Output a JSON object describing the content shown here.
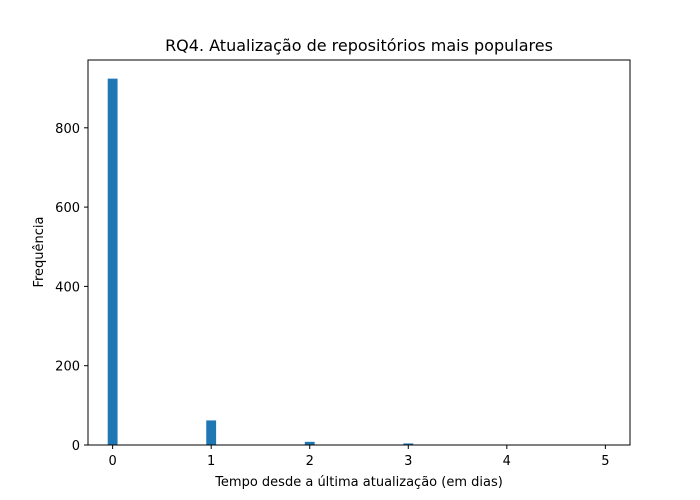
{
  "chart_data": {
    "type": "bar",
    "title": "RQ4. Atualização de repositórios mais populares",
    "xlabel": "Tempo desde a última atualização (em dias)",
    "ylabel": "Frequência",
    "xlim": [
      -0.25,
      5.25
    ],
    "ylim": [
      0,
      971
    ],
    "xticks": [
      0,
      1,
      2,
      3,
      4,
      5
    ],
    "yticks": [
      0,
      200,
      400,
      600,
      800
    ],
    "bin_width": 0.1,
    "bins": [
      {
        "x": 0,
        "value": 924
      },
      {
        "x": 1,
        "value": 62
      },
      {
        "x": 2,
        "value": 8
      },
      {
        "x": 3,
        "value": 4
      }
    ],
    "bar_color": "#1f77b4",
    "grid": false,
    "legend": "none"
  }
}
